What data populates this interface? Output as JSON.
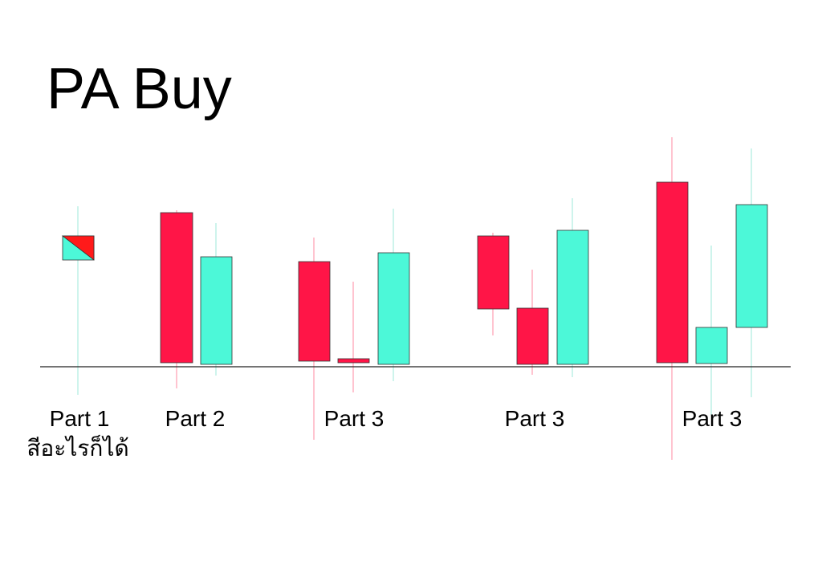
{
  "title": "PA Buy",
  "labels": [
    {
      "label": "Part 1",
      "sublabel": "สีอะไรก็ได้"
    },
    {
      "label": "Part 2"
    },
    {
      "label": "Part 3"
    },
    {
      "label": "Part 3"
    },
    {
      "label": "Part 3"
    }
  ]
}
